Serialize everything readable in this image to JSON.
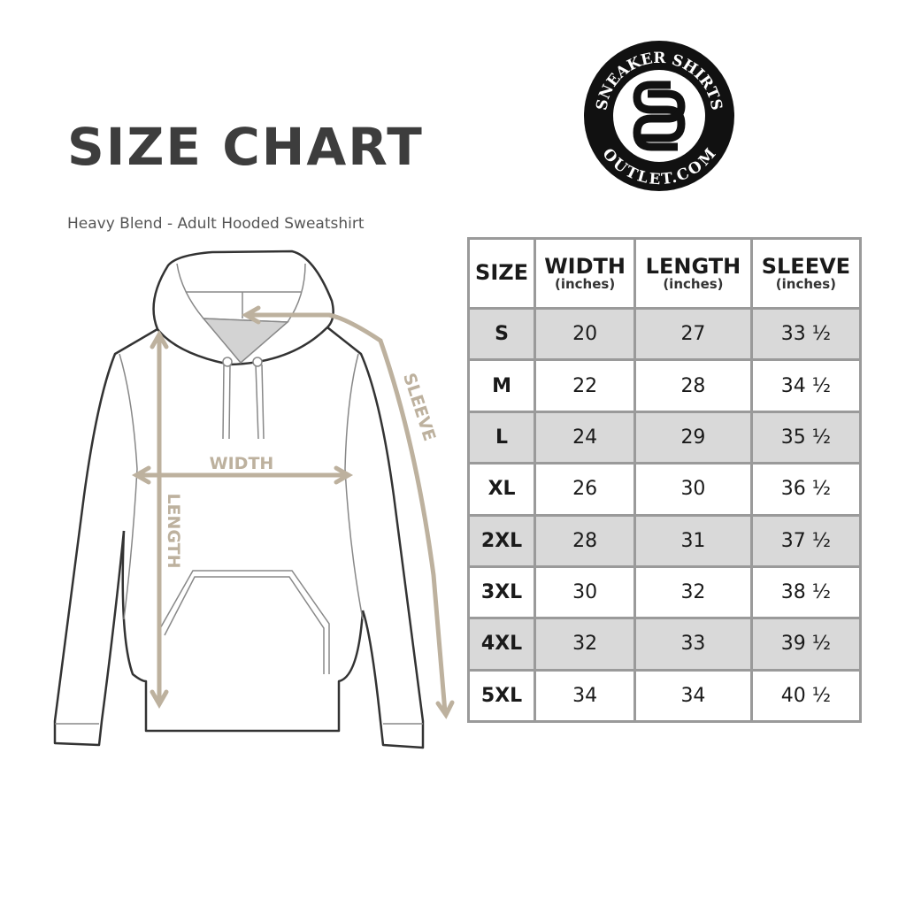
{
  "title": "SIZE CHART",
  "subtitle": "Heavy Blend - Adult Hooded Sweatshirt",
  "logo": {
    "top_text": "SNEAKER SHIRTS",
    "bottom_text": "OUTLET.COM",
    "monogram": "SS"
  },
  "diagram": {
    "width_label": "WIDTH",
    "length_label": "LENGTH",
    "sleeve_label": "SLEEVE",
    "accent_color": "#bdb19e"
  },
  "table": {
    "headers": [
      {
        "label": "SIZE",
        "unit": ""
      },
      {
        "label": "WIDTH",
        "unit": "(inches)"
      },
      {
        "label": "LENGTH",
        "unit": "(inches)"
      },
      {
        "label": "SLEEVE",
        "unit": "(inches)"
      }
    ],
    "rows": [
      [
        "S",
        "20",
        "27",
        "33 ½"
      ],
      [
        "M",
        "22",
        "28",
        "34 ½"
      ],
      [
        "L",
        "24",
        "29",
        "35 ½"
      ],
      [
        "XL",
        "26",
        "30",
        "36 ½"
      ],
      [
        "2XL",
        "28",
        "31",
        "37 ½"
      ],
      [
        "3XL",
        "30",
        "32",
        "38 ½"
      ],
      [
        "4XL",
        "32",
        "33",
        "39 ½"
      ],
      [
        "5XL",
        "34",
        "34",
        "40 ½"
      ]
    ],
    "shade_color": "#d9d9d9"
  }
}
